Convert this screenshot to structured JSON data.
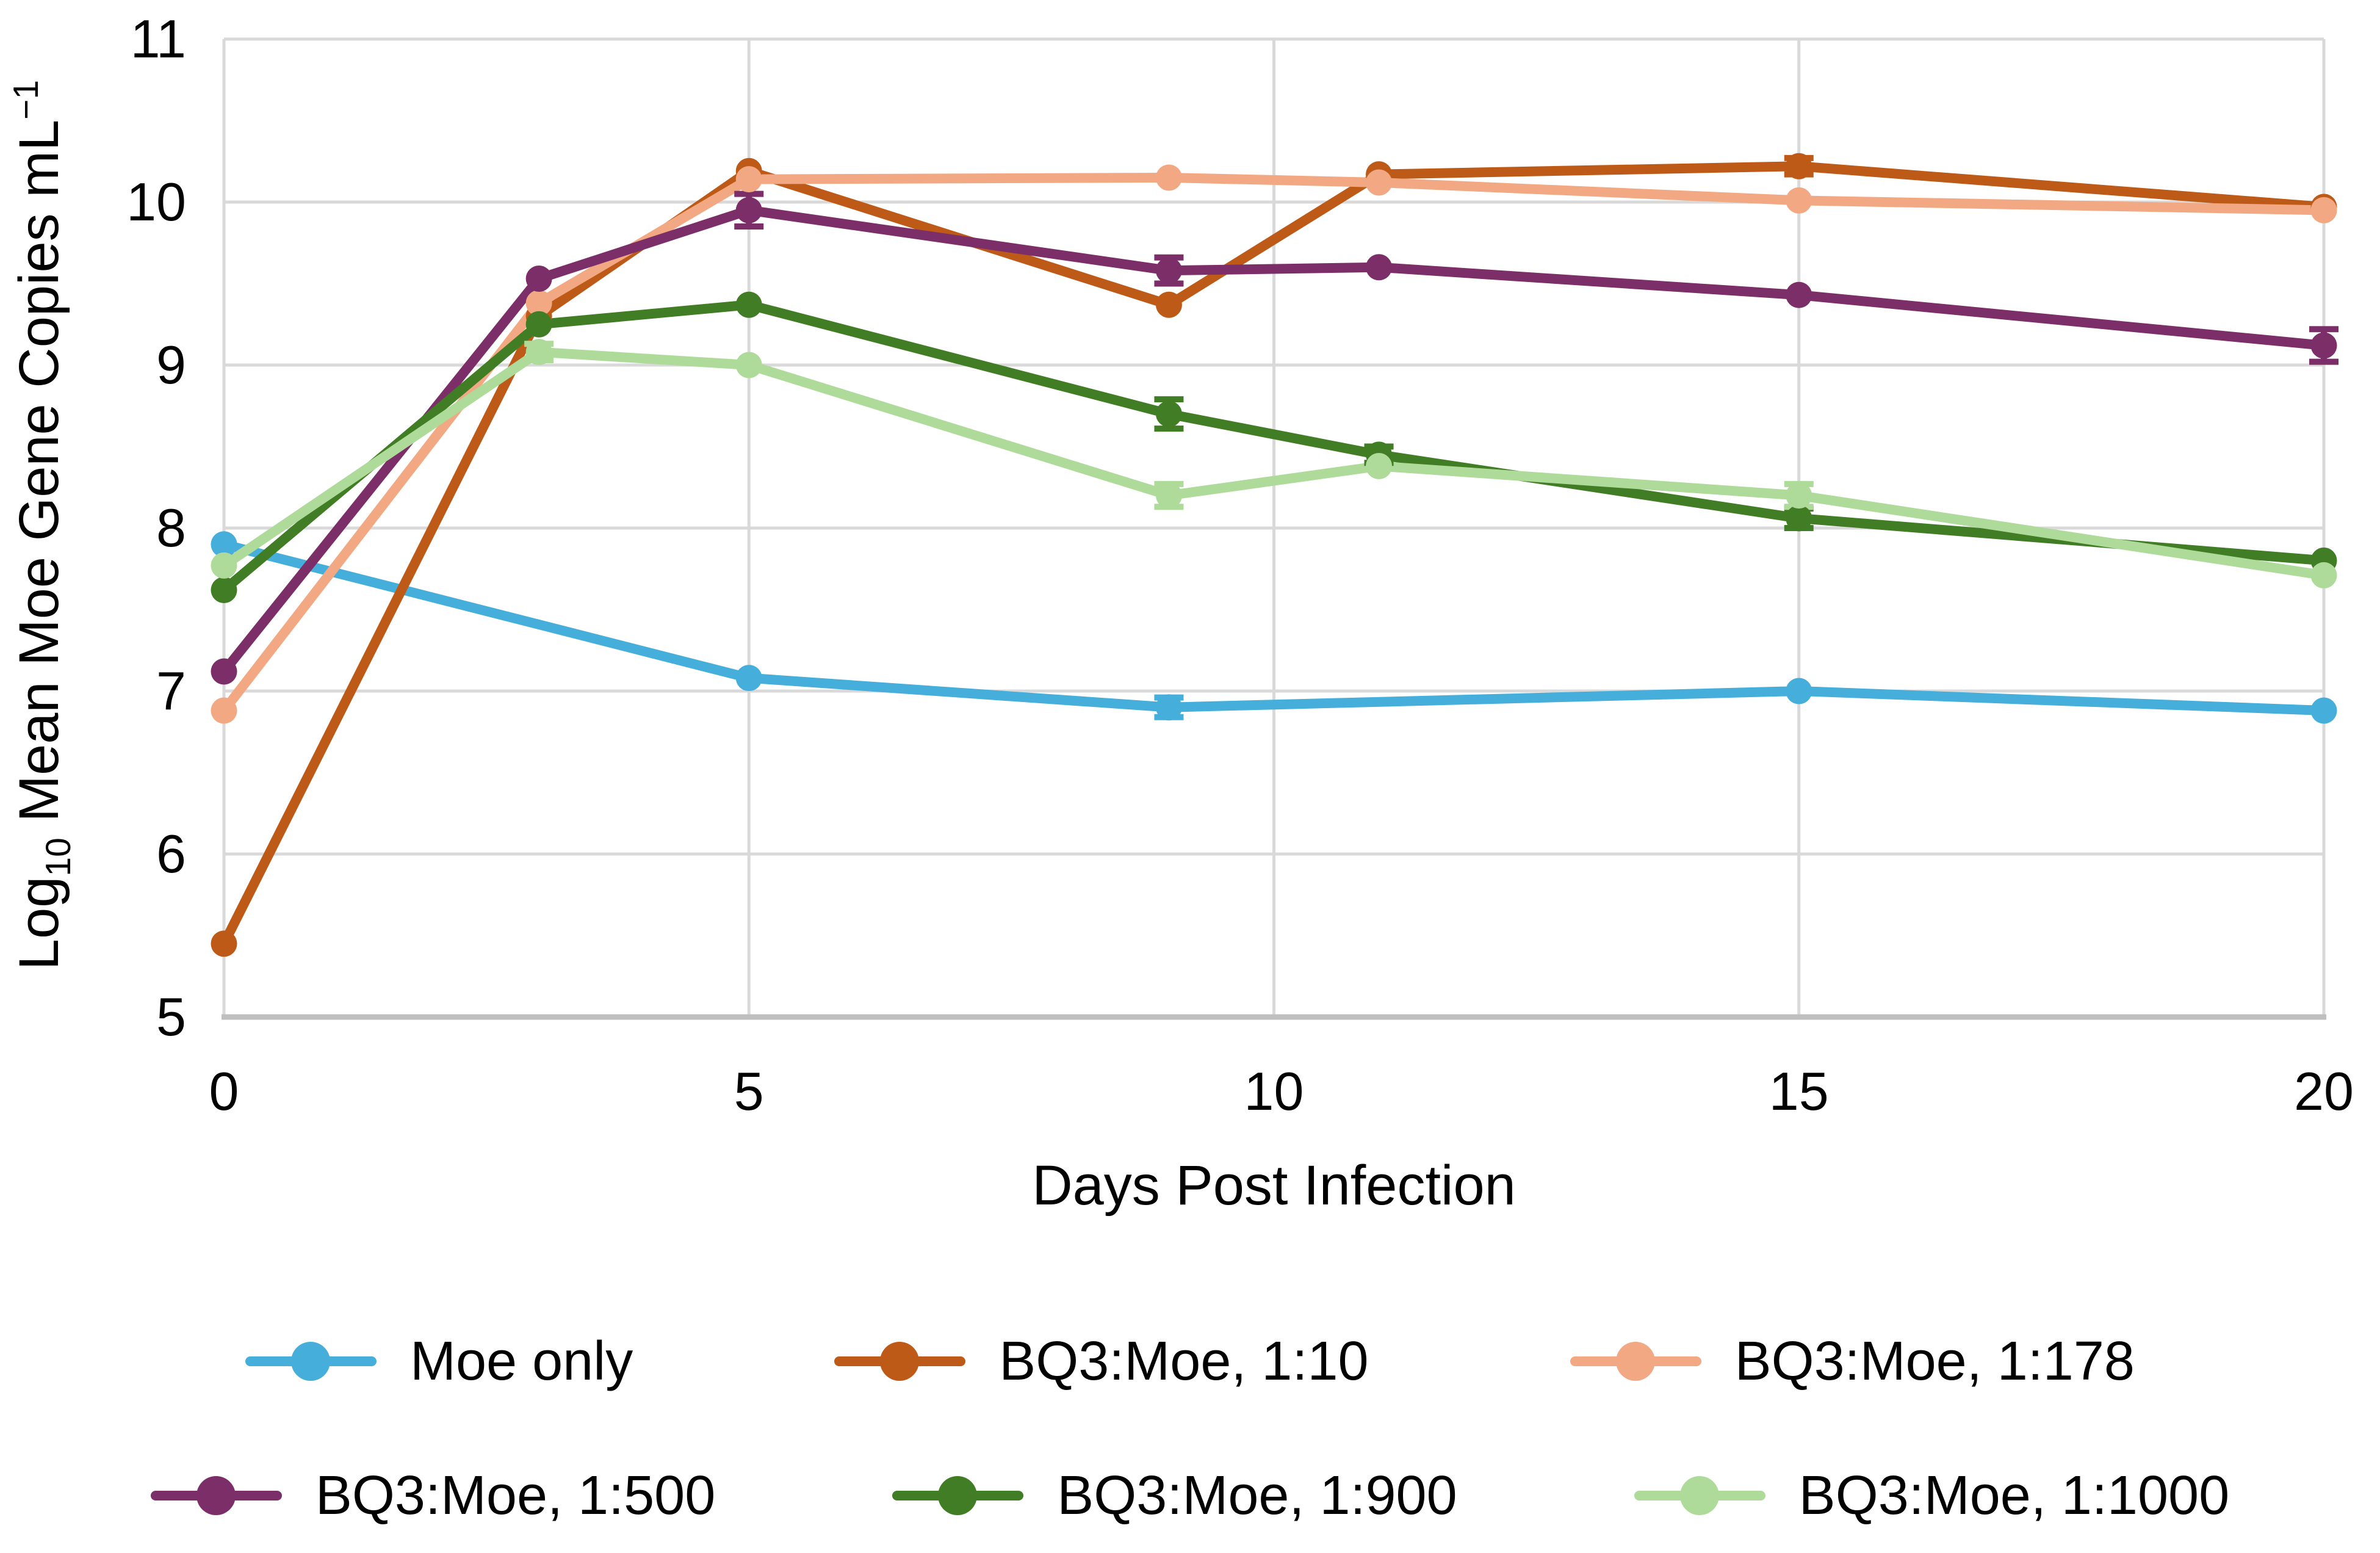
{
  "figure": {
    "title": "",
    "xlabel": "Days Post Infection",
    "ylabel_parts": {
      "log": "Log",
      "sub": "10",
      "rest": " Mean Moe Gene Copies mL",
      "sup": "−1"
    }
  },
  "colors": {
    "gridline": "#D9D9D9",
    "axis_line": "#BFBFBF",
    "text": "#000000"
  },
  "chart_data": {
    "type": "line",
    "title": "",
    "xlabel": "Days Post Infection",
    "ylabel": "Log10 Mean Moe Gene Copies mL-1",
    "xlim": [
      0,
      20
    ],
    "ylim": [
      5,
      11
    ],
    "xticks": [
      0,
      5,
      10,
      15,
      20
    ],
    "yticks": [
      5,
      6,
      7,
      8,
      9,
      10,
      11
    ],
    "grid": true,
    "legend_position": "bottom",
    "marker": "circle",
    "series": [
      {
        "name": "Moe only",
        "color": "#45AEDB",
        "x": [
          0,
          5,
          9,
          15,
          20
        ],
        "y": [
          7.9,
          7.08,
          6.9,
          7.0,
          6.88
        ],
        "err": [
          0,
          0,
          0.06,
          0,
          0
        ]
      },
      {
        "name": "BQ3:Moe, 1:10",
        "color": "#BE5A17",
        "x": [
          0,
          3,
          5,
          9,
          11,
          15,
          20
        ],
        "y": [
          5.45,
          9.3,
          10.19,
          9.37,
          10.17,
          10.22,
          9.97
        ],
        "err": [
          0,
          0,
          0,
          0,
          0,
          0.05,
          0
        ]
      },
      {
        "name": "BQ3:Moe, 1:178",
        "color": "#F2A983",
        "x": [
          0,
          3,
          5,
          9,
          11,
          15,
          20
        ],
        "y": [
          6.88,
          9.38,
          10.14,
          10.15,
          10.12,
          10.01,
          9.95
        ],
        "err": [
          0,
          0,
          0,
          0,
          0,
          0,
          0
        ]
      },
      {
        "name": "BQ3:Moe, 1:500",
        "color": "#7C2E68",
        "x": [
          0,
          3,
          5,
          9,
          11,
          15,
          20
        ],
        "y": [
          7.12,
          9.53,
          9.95,
          9.58,
          9.6,
          9.43,
          9.12
        ],
        "err": [
          0,
          0,
          0.1,
          0.08,
          0,
          0,
          0.1
        ]
      },
      {
        "name": "BQ3:Moe, 1:900",
        "color": "#417D24",
        "x": [
          0,
          3,
          5,
          9,
          11,
          15,
          20
        ],
        "y": [
          7.62,
          9.25,
          9.37,
          8.7,
          8.45,
          8.06,
          7.8
        ],
        "err": [
          0,
          0,
          0,
          0.09,
          0.05,
          0.06,
          0
        ]
      },
      {
        "name": "BQ3:Moe, 1:1000",
        "color": "#AEDB99",
        "x": [
          0,
          3,
          5,
          9,
          11,
          15,
          20
        ],
        "y": [
          7.77,
          9.08,
          9.0,
          8.2,
          8.38,
          8.2,
          7.71
        ],
        "err": [
          0,
          0.05,
          0,
          0.07,
          0,
          0.07,
          0
        ]
      }
    ]
  }
}
